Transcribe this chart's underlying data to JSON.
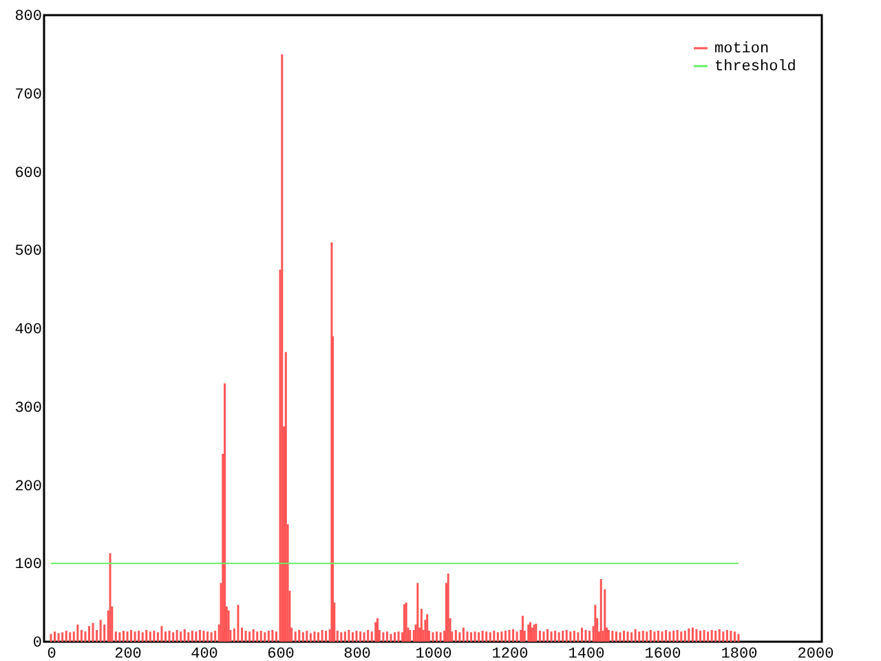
{
  "chart_data": {
    "type": "bar",
    "xlim": [
      0,
      2000
    ],
    "xticks": [
      0,
      200,
      400,
      600,
      800,
      1000,
      1200,
      1400,
      1600,
      1800,
      2000
    ],
    "ylim": [
      0,
      800
    ],
    "yticks": [
      0,
      100,
      200,
      300,
      400,
      500,
      600,
      700,
      800
    ],
    "grid": false,
    "legend": "top right",
    "series": [
      {
        "name": "motion",
        "color": "#ff5555",
        "x": [
          0,
          10,
          20,
          30,
          40,
          50,
          60,
          70,
          80,
          90,
          100,
          110,
          120,
          130,
          140,
          150,
          155,
          160,
          170,
          180,
          190,
          200,
          210,
          220,
          230,
          240,
          250,
          260,
          270,
          280,
          290,
          300,
          310,
          320,
          330,
          340,
          350,
          360,
          370,
          380,
          390,
          400,
          410,
          420,
          430,
          440,
          445,
          450,
          455,
          460,
          465,
          470,
          480,
          490,
          500,
          510,
          520,
          530,
          540,
          550,
          560,
          570,
          580,
          590,
          600,
          605,
          610,
          615,
          620,
          625,
          630,
          640,
          650,
          660,
          670,
          680,
          690,
          700,
          710,
          720,
          730,
          735,
          738,
          742,
          750,
          760,
          770,
          780,
          790,
          800,
          810,
          820,
          830,
          840,
          850,
          855,
          860,
          870,
          880,
          890,
          900,
          910,
          920,
          925,
          930,
          935,
          940,
          950,
          955,
          960,
          965,
          970,
          975,
          980,
          985,
          990,
          1000,
          1010,
          1020,
          1030,
          1035,
          1040,
          1045,
          1050,
          1060,
          1070,
          1080,
          1090,
          1100,
          1110,
          1120,
          1130,
          1140,
          1150,
          1160,
          1170,
          1180,
          1190,
          1200,
          1210,
          1220,
          1230,
          1235,
          1240,
          1250,
          1255,
          1260,
          1265,
          1270,
          1280,
          1290,
          1300,
          1310,
          1320,
          1330,
          1340,
          1350,
          1360,
          1370,
          1380,
          1390,
          1400,
          1410,
          1420,
          1425,
          1430,
          1435,
          1440,
          1445,
          1450,
          1455,
          1460,
          1470,
          1480,
          1490,
          1500,
          1510,
          1520,
          1530,
          1540,
          1550,
          1560,
          1570,
          1580,
          1590,
          1600,
          1610,
          1620,
          1630,
          1640,
          1650,
          1660,
          1670,
          1680,
          1690,
          1700,
          1710,
          1720,
          1730,
          1740,
          1750,
          1760,
          1770,
          1780,
          1790,
          1800
        ],
        "values": [
          10,
          13,
          11,
          12,
          14,
          12,
          13,
          22,
          15,
          13,
          20,
          24,
          15,
          28,
          22,
          40,
          113,
          45,
          13,
          12,
          14,
          13,
          15,
          13,
          14,
          12,
          15,
          13,
          14,
          12,
          20,
          13,
          14,
          12,
          15,
          13,
          16,
          12,
          14,
          13,
          15,
          14,
          13,
          12,
          14,
          22,
          75,
          240,
          330,
          45,
          40,
          15,
          17,
          47,
          18,
          14,
          13,
          16,
          13,
          14,
          12,
          14,
          15,
          13,
          475,
          750,
          275,
          370,
          150,
          65,
          18,
          13,
          15,
          12,
          14,
          11,
          13,
          12,
          15,
          14,
          16,
          510,
          390,
          50,
          14,
          12,
          13,
          15,
          12,
          14,
          13,
          12,
          15,
          13,
          25,
          30,
          15,
          12,
          13,
          10,
          12,
          13,
          12,
          48,
          50,
          18,
          15,
          15,
          22,
          75,
          18,
          42,
          15,
          28,
          35,
          14,
          12,
          13,
          12,
          14,
          75,
          87,
          30,
          13,
          15,
          12,
          18,
          13,
          12,
          13,
          12,
          14,
          13,
          12,
          14,
          12,
          13,
          14,
          15,
          16,
          13,
          15,
          33,
          14,
          22,
          25,
          18,
          22,
          23,
          14,
          13,
          16,
          13,
          14,
          12,
          14,
          15,
          13,
          14,
          12,
          18,
          15,
          14,
          20,
          47,
          30,
          13,
          80,
          14,
          67,
          18,
          15,
          14,
          13,
          12,
          14,
          13,
          12,
          16,
          13,
          14,
          13,
          15,
          13,
          14,
          13,
          15,
          13,
          14,
          15,
          13,
          14,
          17,
          18,
          16,
          14,
          15,
          13,
          15,
          14,
          16,
          13,
          15,
          14,
          13,
          10
        ]
      },
      {
        "name": "threshold",
        "type": "line",
        "color": "#66ee66",
        "x": [
          0,
          1800
        ],
        "values": [
          100,
          100
        ]
      }
    ]
  }
}
